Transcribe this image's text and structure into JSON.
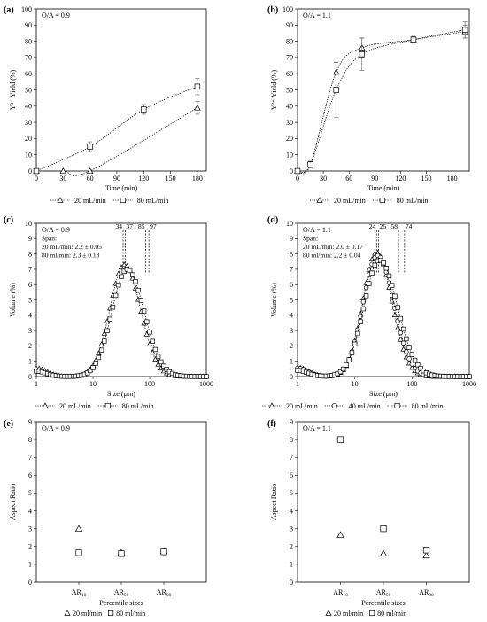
{
  "chart_data": [
    {
      "id": "a",
      "panel_label": "(a)",
      "type": "line",
      "annotation_lines": [
        "O/A = 0.9"
      ],
      "xlabel": "Time (min)",
      "ylabel": "Y³⁺ Yield (%)",
      "xlim": [
        0,
        190
      ],
      "ylim": [
        0,
        100
      ],
      "xticks": [
        0,
        30,
        60,
        90,
        120,
        150,
        180
      ],
      "yticks": [
        0,
        10,
        20,
        30,
        40,
        50,
        60,
        70,
        80,
        90,
        100
      ],
      "legend_position": "bottom",
      "series": [
        {
          "name": "20 mL/min",
          "marker": "triangle",
          "x": [
            0,
            30,
            60,
            180
          ],
          "y": [
            0,
            0,
            0,
            39
          ],
          "err": [
            0,
            0,
            0,
            4
          ]
        },
        {
          "name": "80 mL/min",
          "marker": "square",
          "x": [
            0,
            60,
            120,
            180
          ],
          "y": [
            0,
            15,
            38,
            52
          ],
          "err": [
            0,
            3,
            3,
            5
          ]
        }
      ]
    },
    {
      "id": "b",
      "panel_label": "(b)",
      "type": "line",
      "annotation_lines": [
        "O/A = 1.1"
      ],
      "xlabel": "Time (min)",
      "ylabel": "Y³⁺ Yield (%)",
      "xlim": [
        0,
        200
      ],
      "ylim": [
        0,
        100
      ],
      "xticks": [
        0,
        30,
        60,
        90,
        120,
        150,
        180
      ],
      "yticks": [
        0,
        10,
        20,
        30,
        40,
        50,
        60,
        70,
        80,
        90,
        100
      ],
      "legend_position": "bottom",
      "series": [
        {
          "name": "20 mL/min",
          "marker": "triangle",
          "x": [
            0,
            15,
            45,
            75,
            135,
            195
          ],
          "y": [
            0,
            4,
            61,
            76,
            81,
            86
          ],
          "err": [
            0,
            2,
            6,
            6,
            2,
            4
          ]
        },
        {
          "name": "80 mL/min",
          "marker": "square",
          "x": [
            0,
            15,
            45,
            75,
            135,
            195
          ],
          "y": [
            0,
            4,
            50,
            72,
            81,
            87
          ],
          "err": [
            0,
            2,
            17,
            10,
            2,
            5
          ]
        }
      ]
    },
    {
      "id": "c",
      "panel_label": "(c)",
      "type": "line",
      "annotation_lines": [
        "O/A = 0.9",
        "Span:",
        "20 mL/min: 2.2 ± 0.05",
        "80 ml/min: 2.3 ± 0.18"
      ],
      "xlabel": "Size (µm)",
      "ylabel": "Volume (%)",
      "xscale": "log",
      "xlim": [
        1,
        1000
      ],
      "ylim": [
        0,
        10
      ],
      "xticks": [
        1,
        10,
        100,
        1000
      ],
      "yticks": [
        0,
        1,
        2,
        3,
        4,
        5,
        6,
        7,
        8,
        9,
        10
      ],
      "legend_position": "bottom",
      "vlines": [
        {
          "x": 34,
          "label": "34"
        },
        {
          "x": 37,
          "label": "37"
        },
        {
          "x": 85,
          "label": "85"
        },
        {
          "x": 97,
          "label": "97"
        }
      ],
      "series": [
        {
          "name": "20 mL/min",
          "marker": "triangle",
          "dist": {
            "peak": 7.3,
            "mode": 36,
            "lw": 0.43,
            "rw": 0.47,
            "bump": 0.55
          }
        },
        {
          "name": "80 mL/min",
          "marker": "square",
          "dist": {
            "peak": 7.0,
            "mode": 40,
            "lw": 0.45,
            "rw": 0.5,
            "bump": 0.35
          }
        }
      ]
    },
    {
      "id": "d",
      "panel_label": "(d)",
      "type": "line",
      "annotation_lines": [
        "O/A = 1.1",
        "Span:",
        "20 mL/min: 2.0 ± 0.17",
        "80 ml/min: 2.2 ± 0.04"
      ],
      "xlabel": "Size (µm)",
      "ylabel": "Volume (%)",
      "xscale": "log",
      "xlim": [
        1,
        1000
      ],
      "ylim": [
        0,
        10
      ],
      "xticks": [
        1,
        10,
        100,
        1000
      ],
      "yticks": [
        0,
        1,
        2,
        3,
        4,
        5,
        6,
        7,
        8,
        9,
        10
      ],
      "legend_position": "bottom",
      "vlines": [
        {
          "x": 24,
          "label": "24"
        },
        {
          "x": 26,
          "label": "26"
        },
        {
          "x": 58,
          "label": "58"
        },
        {
          "x": 74,
          "label": "74"
        }
      ],
      "series": [
        {
          "name": "20 mL/min",
          "marker": "triangle",
          "dist": {
            "peak": 8.1,
            "mode": 24,
            "lw": 0.4,
            "rw": 0.45,
            "bump": 0.6
          }
        },
        {
          "name": "40 mL/min",
          "marker": "circle",
          "dist": {
            "peak": 7.9,
            "mode": 25,
            "lw": 0.42,
            "rw": 0.47,
            "bump": 0.55
          }
        },
        {
          "name": "80 mL/min",
          "marker": "square",
          "dist": {
            "peak": 7.6,
            "mode": 27,
            "lw": 0.45,
            "rw": 0.52,
            "bump": 0.4
          }
        }
      ]
    },
    {
      "id": "e",
      "panel_label": "(e)",
      "type": "scatter",
      "annotation_lines": [
        "O/A = 0.9"
      ],
      "xlabel": "Percentile sizes",
      "ylabel": "Aspect Ratio",
      "ylim": [
        0,
        9
      ],
      "yticks": [
        0,
        1,
        2,
        3,
        4,
        5,
        6,
        7,
        8,
        9
      ],
      "categories": [
        {
          "base": "AR",
          "sub": "10"
        },
        {
          "base": "AR",
          "sub": "50"
        },
        {
          "base": "AR",
          "sub": "90"
        }
      ],
      "legend_position": "bottom",
      "series": [
        {
          "name": "20 ml/min",
          "marker": "triangle",
          "values": [
            3.0,
            1.65,
            1.75
          ]
        },
        {
          "name": "80 ml/min",
          "marker": "square",
          "values": [
            1.65,
            1.6,
            1.7
          ]
        }
      ]
    },
    {
      "id": "f",
      "panel_label": "(f)",
      "type": "scatter",
      "annotation_lines": [
        "O/A = 1.1"
      ],
      "xlabel": "Percentile sizes",
      "ylabel": "Aspect Ratio",
      "ylim": [
        0,
        9
      ],
      "yticks": [
        0,
        1,
        2,
        3,
        4,
        5,
        6,
        7,
        8,
        9
      ],
      "categories": [
        {
          "base": "AR",
          "sub": "10"
        },
        {
          "base": "AR",
          "sub": "50"
        },
        {
          "base": "AR",
          "sub": "90"
        }
      ],
      "legend_position": "bottom",
      "series": [
        {
          "name": "20 ml/min",
          "marker": "triangle",
          "values": [
            2.65,
            1.6,
            1.5
          ]
        },
        {
          "name": "80 ml/min",
          "marker": "square",
          "values": [
            8.0,
            3.0,
            1.8
          ]
        }
      ]
    }
  ]
}
